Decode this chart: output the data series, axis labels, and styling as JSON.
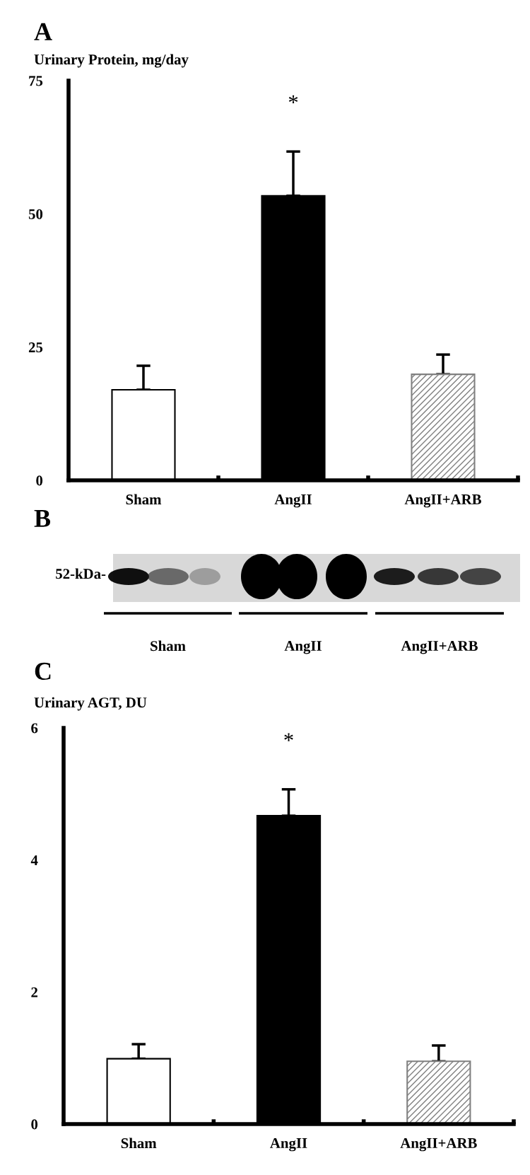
{
  "chart_data": [
    {
      "type": "bar",
      "title": "A",
      "ylabel": "Urinary Protein, mg/day",
      "categories": [
        "Sham",
        "AngII",
        "AngII+ARB"
      ],
      "values": [
        17.0,
        53.4,
        19.9
      ],
      "errors": [
        [
          17.0,
          21.5
        ],
        [
          53.4,
          61.7
        ],
        [
          19.9,
          23.6
        ]
      ],
      "colors": [
        "#ffffff",
        "#000000",
        "#808080"
      ],
      "ylim": [
        0,
        75
      ],
      "yticks": [
        0,
        25,
        50,
        75
      ],
      "grid": false,
      "annotations": [
        "*"
      ]
    },
    {
      "type": "other",
      "title": "B",
      "annotations": [
        "52-kDa-",
        "Sham",
        "AngII",
        "AngII+ARB"
      ]
    },
    {
      "type": "bar",
      "title": "C",
      "ylabel": "Urinary AGT, DU",
      "categories": [
        "Sham",
        "AngII",
        "AngII+ARB"
      ],
      "values": [
        0.99,
        4.67,
        0.95
      ],
      "errors": [
        [
          0.99,
          1.21
        ],
        [
          4.67,
          5.07
        ],
        [
          0.95,
          1.19
        ]
      ],
      "colors": [
        "#ffffff",
        "#000000",
        "#808080"
      ],
      "ylim": [
        0,
        6
      ],
      "yticks": [
        0,
        2,
        4,
        6
      ],
      "grid": false,
      "annotations": [
        "*"
      ]
    }
  ]
}
